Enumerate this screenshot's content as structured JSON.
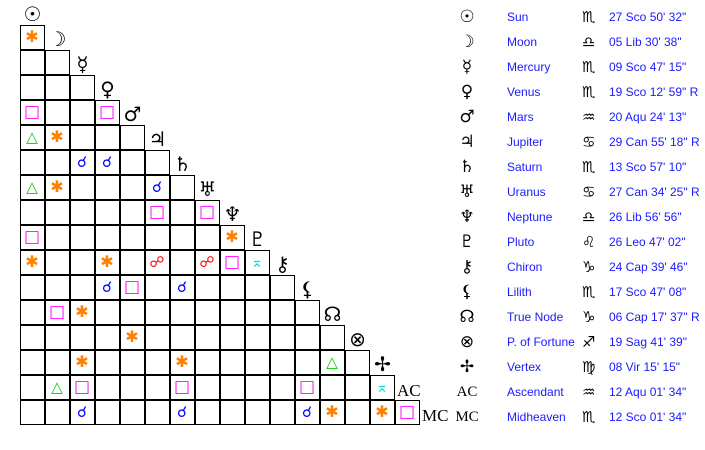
{
  "colors": {
    "conjunction": "#0000ff",
    "sextile": "#ff8000",
    "square": "#ff00ff",
    "trine": "#00cc00",
    "opposition": "#ff0000",
    "quincunx": "#00e0e0",
    "text": "#1a1aff"
  },
  "aspect_glyphs": {
    "conjunction": "☌",
    "sextile": "✱",
    "square": "□",
    "trine": "△",
    "opposition": "☍",
    "quincunx": "⌅"
  },
  "planets": [
    {
      "glyph": "☉",
      "icon": "sun-icon",
      "name": "Sun",
      "sign_glyph": "♏",
      "sign_icon": "scorpio-icon",
      "position": "27 Sco 50' 32\""
    },
    {
      "glyph": "☽",
      "icon": "moon-icon",
      "name": "Moon",
      "sign_glyph": "♎",
      "sign_icon": "libra-icon",
      "position": "05 Lib 30' 38\""
    },
    {
      "glyph": "☿",
      "icon": "mercury-icon",
      "name": "Mercury",
      "sign_glyph": "♏",
      "sign_icon": "scorpio-icon",
      "position": "09 Sco 47' 15\""
    },
    {
      "glyph": "♀",
      "icon": "venus-icon",
      "name": "Venus",
      "sign_glyph": "♏",
      "sign_icon": "scorpio-icon",
      "position": "19 Sco 12' 59\" R"
    },
    {
      "glyph": "♂",
      "icon": "mars-icon",
      "name": "Mars",
      "sign_glyph": "♒",
      "sign_icon": "aquarius-icon",
      "position": "20 Aqu 24' 13\""
    },
    {
      "glyph": "♃",
      "icon": "jupiter-icon",
      "name": "Jupiter",
      "sign_glyph": "♋",
      "sign_icon": "cancer-icon",
      "position": "29 Can 55' 18\" R"
    },
    {
      "glyph": "♄",
      "icon": "saturn-icon",
      "name": "Saturn",
      "sign_glyph": "♏",
      "sign_icon": "scorpio-icon",
      "position": "13 Sco 57' 10\""
    },
    {
      "glyph": "♅",
      "icon": "uranus-icon",
      "name": "Uranus",
      "sign_glyph": "♋",
      "sign_icon": "cancer-icon",
      "position": "27 Can 34' 25\" R"
    },
    {
      "glyph": "♆",
      "icon": "neptune-icon",
      "name": "Neptune",
      "sign_glyph": "♎",
      "sign_icon": "libra-icon",
      "position": "26 Lib 56' 56\""
    },
    {
      "glyph": "♇",
      "icon": "pluto-icon",
      "name": "Pluto",
      "sign_glyph": "♌",
      "sign_icon": "leo-icon",
      "position": "26 Leo 47' 02\""
    },
    {
      "glyph": "⚷",
      "icon": "chiron-icon",
      "name": "Chiron",
      "sign_glyph": "♑",
      "sign_icon": "capricorn-icon",
      "position": "24 Cap 39' 46\""
    },
    {
      "glyph": "⚸",
      "icon": "lilith-icon",
      "name": "Lilith",
      "sign_glyph": "♏",
      "sign_icon": "scorpio-icon",
      "position": "17 Sco 47' 08\""
    },
    {
      "glyph": "☊",
      "icon": "true-node-icon",
      "name": "True Node",
      "sign_glyph": "♑",
      "sign_icon": "capricorn-icon",
      "position": "06 Cap 17' 37\" R"
    },
    {
      "glyph": "⊗",
      "icon": "part-of-fortune-icon",
      "name": "P. of Fortune",
      "sign_glyph": "♐",
      "sign_icon": "sagittarius-icon",
      "position": "19 Sag 41' 39\""
    },
    {
      "glyph": "✢",
      "icon": "vertex-icon",
      "name": "Vertex",
      "sign_glyph": "♍",
      "sign_icon": "virgo-icon",
      "position": "08 Vir 15' 15\""
    },
    {
      "glyph": "AC",
      "icon": "ascendant-icon",
      "name": "Ascendant",
      "sign_glyph": "♒",
      "sign_icon": "aquarius-icon",
      "position": "12 Aqu 01' 34\""
    },
    {
      "glyph": "MC",
      "icon": "midheaven-icon",
      "name": "Midheaven",
      "sign_glyph": "♏",
      "sign_icon": "scorpio-icon",
      "position": "12 Sco 01' 34\""
    }
  ],
  "aspect_grid": [
    [
      "sextile"
    ],
    [
      null,
      null
    ],
    [
      null,
      null,
      null
    ],
    [
      "square",
      null,
      null,
      "square"
    ],
    [
      "trine",
      "sextile",
      null,
      null,
      null
    ],
    [
      null,
      null,
      "conjunction",
      "conjunction",
      null,
      null
    ],
    [
      "trine",
      "sextile",
      null,
      null,
      null,
      "conjunction",
      null
    ],
    [
      null,
      null,
      null,
      null,
      null,
      "square",
      null,
      "square"
    ],
    [
      "square",
      null,
      null,
      null,
      null,
      null,
      null,
      null,
      "sextile"
    ],
    [
      "sextile",
      null,
      null,
      "sextile",
      null,
      "opposition",
      null,
      "opposition",
      "square",
      "quincunx"
    ],
    [
      null,
      null,
      null,
      "conjunction",
      "square",
      null,
      "conjunction",
      null,
      null,
      null,
      null
    ],
    [
      null,
      "square",
      "sextile",
      null,
      null,
      null,
      null,
      null,
      null,
      null,
      null,
      null
    ],
    [
      null,
      null,
      null,
      null,
      "sextile",
      null,
      null,
      null,
      null,
      null,
      null,
      null,
      null
    ],
    [
      null,
      null,
      "sextile",
      null,
      null,
      null,
      "sextile",
      null,
      null,
      null,
      null,
      null,
      "trine",
      null
    ],
    [
      null,
      "trine",
      "square",
      null,
      null,
      null,
      "square",
      null,
      null,
      null,
      null,
      "square",
      null,
      null,
      "quincunx"
    ],
    [
      null,
      null,
      "conjunction",
      null,
      null,
      null,
      "conjunction",
      null,
      null,
      null,
      null,
      "conjunction",
      "sextile",
      null,
      "sextile",
      "square"
    ]
  ]
}
